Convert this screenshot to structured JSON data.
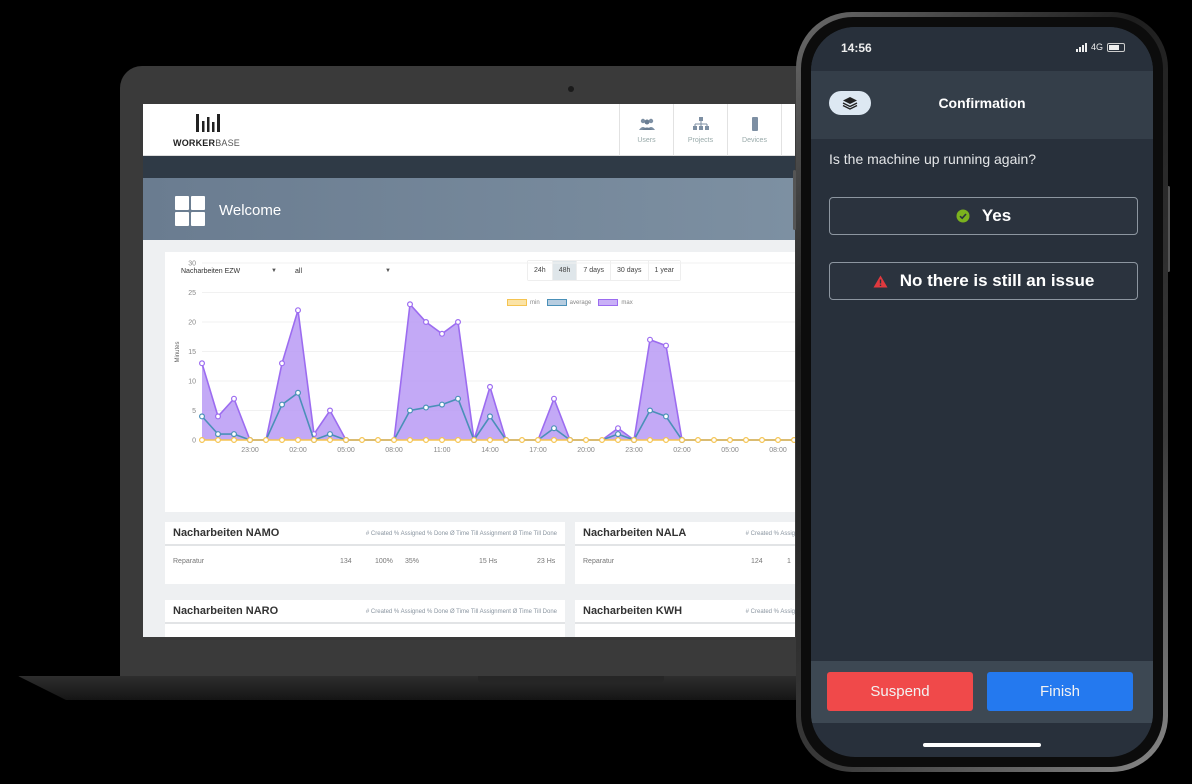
{
  "laptop": {
    "header": {
      "logo_bold": "WORKER",
      "logo_light": "BASE",
      "nav": [
        {
          "label": "Users",
          "icon": "users-icon"
        },
        {
          "label": "Projects",
          "icon": "projects-icon"
        },
        {
          "label": "Devices",
          "icon": "devices-icon"
        }
      ]
    },
    "welcome": {
      "title": "Welcome",
      "icon": "dashboard-grid-icon"
    },
    "filters": {
      "station": "Nacharbeiten EZW",
      "scope": "all",
      "ranges": [
        "24h",
        "48h",
        "7 days",
        "30 days",
        "1 year"
      ],
      "active_range": "48h"
    },
    "tables": [
      {
        "title": "Nacharbeiten NAMO",
        "columns": "# Created % Assigned % Done Ø Time Till Assignment Ø Time Till Done",
        "rows": [
          {
            "name": "Reparatur",
            "created": "134",
            "assigned": "100%",
            "done": "35%",
            "time_assign": "15 Hs",
            "time_done": "23 Hs"
          }
        ]
      },
      {
        "title": "Nacharbeiten NALA",
        "columns": "# Created % Assig",
        "rows": [
          {
            "name": "Reparatur",
            "created": "124",
            "assigned": "1"
          }
        ]
      },
      {
        "title": "Nacharbeiten NARO",
        "columns": "# Created % Assigned % Done Ø Time Till Assignment Ø Time Till Done",
        "rows": []
      },
      {
        "title": "Nacharbeiten KWH",
        "columns": "# Created % Assig",
        "rows": []
      }
    ]
  },
  "chart_data": {
    "type": "area",
    "title": "",
    "xlabel": "",
    "ylabel": "Minutes",
    "ylim": [
      0,
      30
    ],
    "yticks": [
      0,
      5,
      10,
      15,
      20,
      25,
      30
    ],
    "xtick_labels": [
      "23:00",
      "02:00",
      "05:00",
      "08:00",
      "11:00",
      "14:00",
      "17:00",
      "20:00",
      "23:00",
      "02:00",
      "05:00",
      "08:00"
    ],
    "grid": true,
    "legend_position": "top",
    "x": [
      "20:00",
      "21:00",
      "22:00",
      "23:00",
      "00:00",
      "01:00",
      "02:00",
      "03:00",
      "04:00",
      "05:00",
      "06:00",
      "07:00",
      "08:00",
      "09:00",
      "10:00",
      "11:00",
      "12:00",
      "13:00",
      "14:00",
      "15:00",
      "16:00",
      "17:00",
      "18:00",
      "19:00",
      "20:00",
      "21:00",
      "22:00",
      "23:00",
      "00:00",
      "01:00",
      "02:00",
      "03:00",
      "04:00",
      "05:00",
      "06:00",
      "07:00",
      "08:00",
      "09:00"
    ],
    "series": [
      {
        "name": "min",
        "color": "#f5c451",
        "values": [
          0,
          0,
          0,
          0,
          0,
          0,
          0,
          0,
          0,
          0,
          0,
          0,
          0,
          0,
          0,
          0,
          0,
          0,
          0,
          0,
          0,
          0,
          0,
          0,
          0,
          0,
          0,
          0,
          0,
          0,
          0,
          0,
          0,
          0,
          0,
          0,
          0,
          0
        ]
      },
      {
        "name": "average",
        "color": "#4a90b8",
        "values": [
          4,
          1,
          1,
          0,
          0,
          6,
          8,
          0,
          1,
          0,
          0,
          0,
          0,
          5,
          5.5,
          6,
          7,
          0,
          4,
          0,
          0,
          0,
          2,
          0,
          0,
          0,
          1,
          0,
          5,
          4,
          0,
          0,
          0,
          0,
          0,
          0,
          0,
          0
        ]
      },
      {
        "name": "max",
        "color": "#9c6cf0",
        "values": [
          13,
          4,
          7,
          0,
          0,
          13,
          22,
          1,
          5,
          0,
          0,
          0,
          0,
          23,
          20,
          18,
          20,
          0,
          9,
          0,
          0,
          0,
          7,
          0,
          0,
          0,
          2,
          0,
          17,
          16,
          0,
          0,
          0,
          0,
          0,
          0,
          0,
          0
        ]
      }
    ]
  },
  "phone": {
    "status": {
      "time": "14:56",
      "network": "4G"
    },
    "app_bar": {
      "title": "Confirmation",
      "icon": "layers-icon"
    },
    "question": "Is the machine up running again?",
    "options": [
      {
        "label": "Yes",
        "icon": "check-circle-icon",
        "icon_color": "#7bb21e"
      },
      {
        "label": "No there is still an issue",
        "icon": "warning-triangle-icon",
        "icon_color": "#e0393e"
      }
    ],
    "actions": {
      "suspend": "Suspend",
      "finish": "Finish"
    },
    "colors": {
      "suspend": "#f0494a",
      "finish": "#2479ef",
      "background": "#28303b"
    }
  }
}
